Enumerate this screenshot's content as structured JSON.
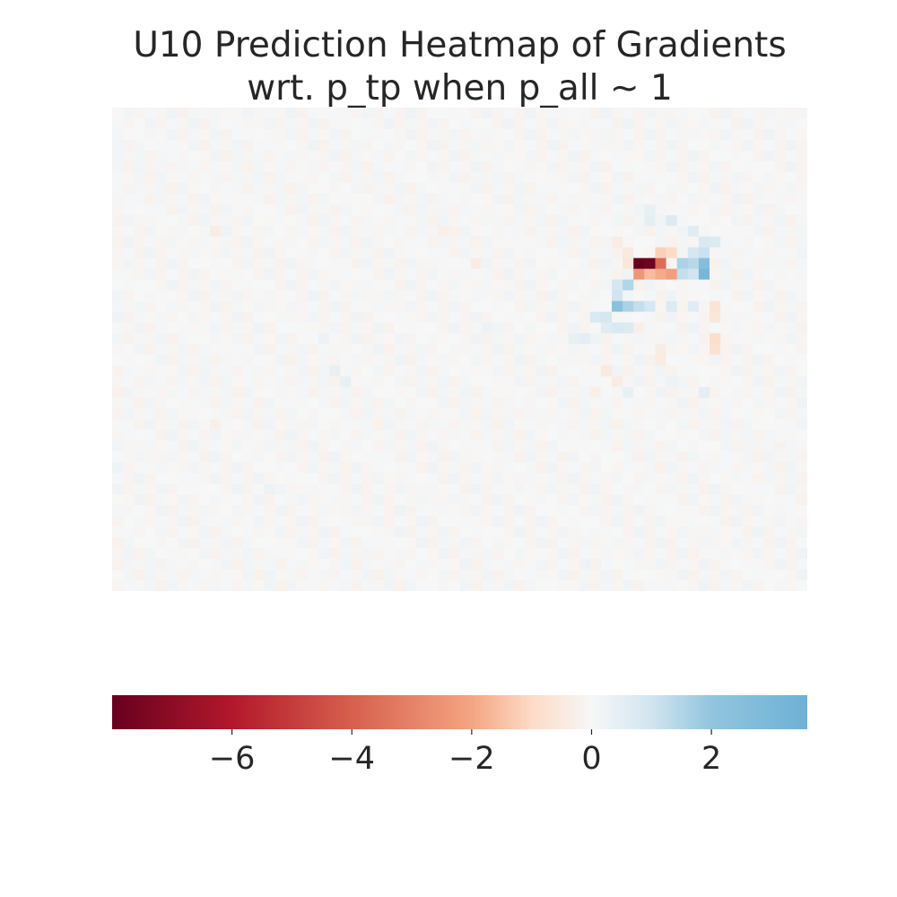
{
  "chart_data": {
    "type": "heatmap",
    "title_lines": [
      "U10 Prediction Heatmap of Gradients",
      "wrt. p_tp when p_all ~ 1"
    ],
    "grid": {
      "rows": 45,
      "cols": 64
    },
    "value_range": [
      -8.0,
      3.6
    ],
    "colormap": {
      "name": "RdBu",
      "stops": [
        {
          "value": -8.0,
          "color": "#67001f"
        },
        {
          "value": -6.0,
          "color": "#b2182b"
        },
        {
          "value": -4.0,
          "color": "#d6604d"
        },
        {
          "value": -2.0,
          "color": "#f4a582"
        },
        {
          "value": -1.0,
          "color": "#fddbc7"
        },
        {
          "value": 0.0,
          "color": "#f7f7f7"
        },
        {
          "value": 1.0,
          "color": "#d1e5f0"
        },
        {
          "value": 2.0,
          "color": "#92c5de"
        },
        {
          "value": 3.6,
          "color": "#6eb1d6"
        }
      ]
    },
    "notable_cells": [
      {
        "row": 14,
        "col": 48,
        "value": -8.0
      },
      {
        "row": 14,
        "col": 49,
        "value": -7.8
      },
      {
        "row": 14,
        "col": 50,
        "value": -3.6
      },
      {
        "row": 13,
        "col": 50,
        "value": -1.2
      },
      {
        "row": 13,
        "col": 51,
        "value": -1.0
      },
      {
        "row": 15,
        "col": 48,
        "value": -2.4
      },
      {
        "row": 15,
        "col": 49,
        "value": -1.6
      },
      {
        "row": 15,
        "col": 50,
        "value": -1.9
      },
      {
        "row": 15,
        "col": 51,
        "value": -2.2
      },
      {
        "row": 14,
        "col": 47,
        "value": -0.6
      },
      {
        "row": 13,
        "col": 47,
        "value": -0.5
      },
      {
        "row": 12,
        "col": 46,
        "value": -0.4
      },
      {
        "row": 14,
        "col": 52,
        "value": 1.6
      },
      {
        "row": 14,
        "col": 53,
        "value": 1.4
      },
      {
        "row": 14,
        "col": 54,
        "value": 2.6
      },
      {
        "row": 15,
        "col": 52,
        "value": 1.2
      },
      {
        "row": 15,
        "col": 53,
        "value": 1.0
      },
      {
        "row": 15,
        "col": 54,
        "value": 3.2
      },
      {
        "row": 13,
        "col": 53,
        "value": 0.9
      },
      {
        "row": 13,
        "col": 54,
        "value": 1.1
      },
      {
        "row": 12,
        "col": 54,
        "value": 0.8
      },
      {
        "row": 12,
        "col": 55,
        "value": 0.7
      },
      {
        "row": 11,
        "col": 53,
        "value": 0.6
      },
      {
        "row": 10,
        "col": 49,
        "value": 0.5
      },
      {
        "row": 10,
        "col": 51,
        "value": 0.7
      },
      {
        "row": 9,
        "col": 49,
        "value": 0.4
      },
      {
        "row": 16,
        "col": 46,
        "value": 0.9
      },
      {
        "row": 16,
        "col": 47,
        "value": 1.5
      },
      {
        "row": 17,
        "col": 46,
        "value": 1.0
      },
      {
        "row": 18,
        "col": 46,
        "value": 2.3
      },
      {
        "row": 18,
        "col": 47,
        "value": 1.6
      },
      {
        "row": 18,
        "col": 48,
        "value": 1.2
      },
      {
        "row": 18,
        "col": 49,
        "value": 0.9
      },
      {
        "row": 18,
        "col": 51,
        "value": 0.7
      },
      {
        "row": 18,
        "col": 53,
        "value": 0.6
      },
      {
        "row": 19,
        "col": 44,
        "value": 0.8
      },
      {
        "row": 19,
        "col": 45,
        "value": 0.9
      },
      {
        "row": 20,
        "col": 45,
        "value": 0.6
      },
      {
        "row": 20,
        "col": 46,
        "value": 0.8
      },
      {
        "row": 20,
        "col": 47,
        "value": 0.7
      },
      {
        "row": 21,
        "col": 42,
        "value": 0.4
      },
      {
        "row": 21,
        "col": 43,
        "value": 0.5
      },
      {
        "row": 18,
        "col": 55,
        "value": -0.7
      },
      {
        "row": 19,
        "col": 55,
        "value": -0.6
      },
      {
        "row": 21,
        "col": 55,
        "value": -0.9
      },
      {
        "row": 22,
        "col": 55,
        "value": -0.8
      },
      {
        "row": 20,
        "col": 48,
        "value": -0.3
      },
      {
        "row": 22,
        "col": 50,
        "value": -0.4
      },
      {
        "row": 23,
        "col": 50,
        "value": -0.4
      },
      {
        "row": 24,
        "col": 45,
        "value": -0.5
      },
      {
        "row": 25,
        "col": 46,
        "value": -0.4
      },
      {
        "row": 26,
        "col": 44,
        "value": -0.3
      },
      {
        "row": 26,
        "col": 47,
        "value": 0.4
      },
      {
        "row": 26,
        "col": 54,
        "value": 0.5
      },
      {
        "row": 25,
        "col": 51,
        "value": 0.3
      },
      {
        "row": 11,
        "col": 9,
        "value": -0.4
      },
      {
        "row": 11,
        "col": 30,
        "value": -0.3
      },
      {
        "row": 14,
        "col": 33,
        "value": -0.4
      },
      {
        "row": 21,
        "col": 19,
        "value": 0.3
      },
      {
        "row": 24,
        "col": 20,
        "value": 0.4
      },
      {
        "row": 25,
        "col": 21,
        "value": 0.4
      },
      {
        "row": 29,
        "col": 9,
        "value": -0.3
      },
      {
        "row": 35,
        "col": 14,
        "value": 0.3
      },
      {
        "row": 20,
        "col": 34,
        "value": 0.3
      }
    ],
    "colorbar": {
      "orientation": "horizontal",
      "ticks": [
        -6,
        -4,
        -2,
        0,
        2
      ],
      "tick_labels": [
        "−6",
        "−4",
        "−2",
        "0",
        "2"
      ]
    }
  }
}
